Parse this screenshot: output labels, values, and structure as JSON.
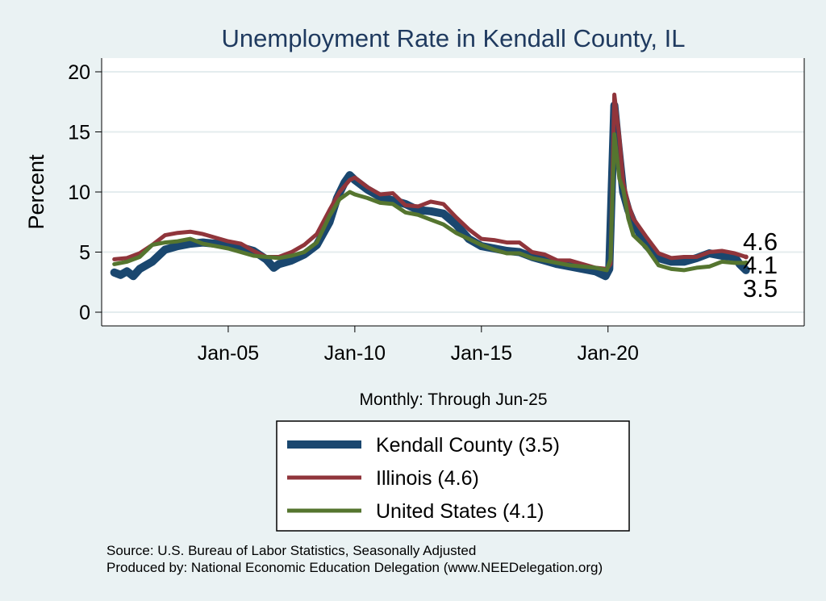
{
  "chart_data": {
    "type": "line",
    "title": "Unemployment Rate in Kendall  County, IL",
    "xlabel": "Monthly: Through Jun-25",
    "ylabel": "Percent",
    "ylim": [
      0,
      20
    ],
    "yticks": [
      0,
      5,
      10,
      15,
      20
    ],
    "xlim": [
      2000.0,
      2027.75
    ],
    "xticks": [
      {
        "label": "Jan-05",
        "value": 2005.0
      },
      {
        "label": "Jan-10",
        "value": 2010.0
      },
      {
        "label": "Jan-15",
        "value": 2015.0
      },
      {
        "label": "Jan-20",
        "value": 2020.0
      }
    ],
    "grid": true,
    "legend_position": "bottom",
    "series": [
      {
        "name": "Kendall  County",
        "legend_label": "Kendall  County (3.5)",
        "color": "#1a476f",
        "width": 10,
        "end_value": 3.5,
        "end_label": "3.5",
        "points": [
          [
            2000.5,
            3.3
          ],
          [
            2000.75,
            3.1
          ],
          [
            2001.0,
            3.4
          ],
          [
            2001.25,
            3.0
          ],
          [
            2001.5,
            3.6
          ],
          [
            2002.0,
            4.2
          ],
          [
            2002.5,
            5.2
          ],
          [
            2003.0,
            5.5
          ],
          [
            2003.5,
            5.7
          ],
          [
            2004.0,
            5.8
          ],
          [
            2004.5,
            5.7
          ],
          [
            2005.0,
            5.6
          ],
          [
            2005.5,
            5.4
          ],
          [
            2006.0,
            5.1
          ],
          [
            2006.5,
            4.4
          ],
          [
            2006.8,
            3.7
          ],
          [
            2007.0,
            4.0
          ],
          [
            2007.5,
            4.3
          ],
          [
            2008.0,
            4.8
          ],
          [
            2008.5,
            5.6
          ],
          [
            2009.0,
            7.5
          ],
          [
            2009.3,
            9.5
          ],
          [
            2009.6,
            10.8
          ],
          [
            2009.8,
            11.4
          ],
          [
            2010.0,
            11.0
          ],
          [
            2010.5,
            10.2
          ],
          [
            2011.0,
            9.6
          ],
          [
            2011.5,
            9.3
          ],
          [
            2012.0,
            9.0
          ],
          [
            2012.5,
            8.5
          ],
          [
            2013.0,
            8.4
          ],
          [
            2013.5,
            8.2
          ],
          [
            2014.0,
            7.3
          ],
          [
            2014.5,
            6.1
          ],
          [
            2015.0,
            5.5
          ],
          [
            2015.5,
            5.3
          ],
          [
            2016.0,
            5.1
          ],
          [
            2016.5,
            5.0
          ],
          [
            2017.0,
            4.6
          ],
          [
            2017.5,
            4.3
          ],
          [
            2018.0,
            4.0
          ],
          [
            2018.5,
            3.8
          ],
          [
            2019.0,
            3.6
          ],
          [
            2019.5,
            3.4
          ],
          [
            2019.9,
            3.0
          ],
          [
            2020.05,
            3.6
          ],
          [
            2020.25,
            17.2
          ],
          [
            2020.4,
            14.0
          ],
          [
            2020.6,
            10.0
          ],
          [
            2020.8,
            8.5
          ],
          [
            2021.0,
            7.5
          ],
          [
            2021.5,
            5.6
          ],
          [
            2022.0,
            4.5
          ],
          [
            2022.5,
            4.2
          ],
          [
            2023.0,
            4.2
          ],
          [
            2023.5,
            4.5
          ],
          [
            2024.0,
            4.9
          ],
          [
            2024.5,
            4.7
          ],
          [
            2025.0,
            4.6
          ],
          [
            2025.2,
            4.0
          ],
          [
            2025.45,
            3.5
          ]
        ]
      },
      {
        "name": "Illinois",
        "legend_label": "Illinois (4.6)",
        "color": "#90353b",
        "width": 5,
        "end_value": 4.6,
        "end_label": "4.6",
        "points": [
          [
            2000.5,
            4.4
          ],
          [
            2001.0,
            4.5
          ],
          [
            2001.5,
            4.9
          ],
          [
            2002.0,
            5.6
          ],
          [
            2002.5,
            6.4
          ],
          [
            2003.0,
            6.6
          ],
          [
            2003.5,
            6.7
          ],
          [
            2004.0,
            6.5
          ],
          [
            2004.5,
            6.2
          ],
          [
            2005.0,
            5.9
          ],
          [
            2005.5,
            5.7
          ],
          [
            2006.0,
            5.1
          ],
          [
            2006.5,
            4.6
          ],
          [
            2007.0,
            4.6
          ],
          [
            2007.5,
            5.0
          ],
          [
            2008.0,
            5.6
          ],
          [
            2008.5,
            6.5
          ],
          [
            2009.0,
            8.5
          ],
          [
            2009.4,
            10.0
          ],
          [
            2009.8,
            11.0
          ],
          [
            2010.0,
            11.2
          ],
          [
            2010.5,
            10.4
          ],
          [
            2011.0,
            9.8
          ],
          [
            2011.5,
            9.9
          ],
          [
            2012.0,
            8.9
          ],
          [
            2012.5,
            8.8
          ],
          [
            2013.0,
            9.2
          ],
          [
            2013.5,
            9.0
          ],
          [
            2014.0,
            7.9
          ],
          [
            2014.5,
            6.9
          ],
          [
            2015.0,
            6.1
          ],
          [
            2015.5,
            6.0
          ],
          [
            2016.0,
            5.8
          ],
          [
            2016.5,
            5.8
          ],
          [
            2017.0,
            5.0
          ],
          [
            2017.5,
            4.8
          ],
          [
            2018.0,
            4.3
          ],
          [
            2018.5,
            4.3
          ],
          [
            2019.0,
            4.0
          ],
          [
            2019.5,
            3.7
          ],
          [
            2019.95,
            3.6
          ],
          [
            2020.1,
            4.0
          ],
          [
            2020.25,
            18.1
          ],
          [
            2020.45,
            14.5
          ],
          [
            2020.6,
            10.8
          ],
          [
            2020.8,
            9.0
          ],
          [
            2021.0,
            7.8
          ],
          [
            2021.5,
            6.3
          ],
          [
            2022.0,
            4.9
          ],
          [
            2022.5,
            4.5
          ],
          [
            2023.0,
            4.6
          ],
          [
            2023.5,
            4.6
          ],
          [
            2024.0,
            5.0
          ],
          [
            2024.5,
            5.1
          ],
          [
            2025.0,
            4.9
          ],
          [
            2025.45,
            4.6
          ]
        ]
      },
      {
        "name": "United States",
        "legend_label": "United States (4.1)",
        "color": "#55752f",
        "width": 5,
        "end_value": 4.1,
        "end_label": "4.1",
        "points": [
          [
            2000.5,
            4.0
          ],
          [
            2001.0,
            4.2
          ],
          [
            2001.5,
            4.6
          ],
          [
            2002.0,
            5.6
          ],
          [
            2002.5,
            5.8
          ],
          [
            2003.0,
            5.9
          ],
          [
            2003.5,
            6.1
          ],
          [
            2004.0,
            5.7
          ],
          [
            2004.5,
            5.5
          ],
          [
            2005.0,
            5.3
          ],
          [
            2005.5,
            5.0
          ],
          [
            2006.0,
            4.7
          ],
          [
            2006.5,
            4.6
          ],
          [
            2007.0,
            4.5
          ],
          [
            2007.5,
            4.7
          ],
          [
            2008.0,
            5.0
          ],
          [
            2008.5,
            5.8
          ],
          [
            2009.0,
            8.0
          ],
          [
            2009.4,
            9.4
          ],
          [
            2009.8,
            10.0
          ],
          [
            2010.0,
            9.8
          ],
          [
            2010.5,
            9.5
          ],
          [
            2011.0,
            9.1
          ],
          [
            2011.5,
            9.0
          ],
          [
            2012.0,
            8.3
          ],
          [
            2012.5,
            8.1
          ],
          [
            2013.0,
            7.7
          ],
          [
            2013.5,
            7.3
          ],
          [
            2014.0,
            6.6
          ],
          [
            2014.5,
            6.1
          ],
          [
            2015.0,
            5.6
          ],
          [
            2015.5,
            5.2
          ],
          [
            2016.0,
            4.9
          ],
          [
            2016.5,
            4.9
          ],
          [
            2017.0,
            4.5
          ],
          [
            2017.5,
            4.3
          ],
          [
            2018.0,
            4.1
          ],
          [
            2018.5,
            3.9
          ],
          [
            2019.0,
            3.8
          ],
          [
            2019.5,
            3.7
          ],
          [
            2019.95,
            3.5
          ],
          [
            2020.1,
            4.4
          ],
          [
            2020.25,
            14.8
          ],
          [
            2020.45,
            11.1
          ],
          [
            2020.6,
            10.2
          ],
          [
            2020.8,
            7.8
          ],
          [
            2021.0,
            6.4
          ],
          [
            2021.5,
            5.4
          ],
          [
            2022.0,
            3.9
          ],
          [
            2022.5,
            3.6
          ],
          [
            2023.0,
            3.5
          ],
          [
            2023.5,
            3.7
          ],
          [
            2024.0,
            3.8
          ],
          [
            2024.5,
            4.2
          ],
          [
            2025.0,
            4.1
          ],
          [
            2025.45,
            4.1
          ]
        ]
      }
    ]
  },
  "source": {
    "line1": "Source: U.S. Bureau of Labor Statistics, Seasonally Adjusted",
    "line2": "Produced by: National Economic Education Delegation (www.NEEDelegation.org)"
  }
}
